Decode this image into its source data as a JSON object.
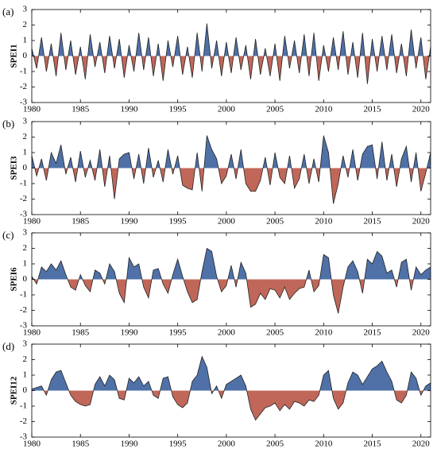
{
  "chart_data": [
    {
      "type": "area",
      "label": "(a)",
      "ylabel": "SPEI1",
      "color_above": "#4f71a8",
      "color_below": "#c0675a",
      "line_color": "#222222",
      "xlim": [
        1980,
        2021
      ],
      "xticks": [
        1980,
        1985,
        1990,
        1995,
        2000,
        2005,
        2010,
        2015,
        2020
      ],
      "ylim": [
        -3,
        3
      ],
      "yticks": [
        -3,
        -2,
        -1,
        0,
        1,
        2,
        3
      ],
      "x": [
        1980,
        1980.5,
        1981,
        1981.5,
        1982,
        1982.5,
        1983,
        1983.5,
        1984,
        1984.5,
        1985,
        1985.5,
        1986,
        1986.5,
        1987,
        1987.5,
        1988,
        1988.5,
        1989,
        1989.5,
        1990,
        1990.5,
        1991,
        1991.5,
        1992,
        1992.5,
        1993,
        1993.5,
        1994,
        1994.5,
        1995,
        1995.5,
        1996,
        1996.5,
        1997,
        1997.5,
        1998,
        1998.5,
        1999,
        1999.5,
        2000,
        2000.5,
        2001,
        2001.5,
        2002,
        2002.5,
        2003,
        2003.5,
        2004,
        2004.5,
        2005,
        2005.5,
        2006,
        2006.5,
        2007,
        2007.5,
        2008,
        2008.5,
        2009,
        2009.5,
        2010,
        2010.5,
        2011,
        2011.5,
        2012,
        2012.5,
        2013,
        2013.5,
        2014,
        2014.5,
        2015,
        2015.5,
        2016,
        2016.5,
        2017,
        2017.5,
        2018,
        2018.5,
        2019,
        2019.5,
        2020,
        2020.5,
        2021
      ],
      "values": [
        0.5,
        -0.8,
        1.2,
        -1.0,
        0.8,
        -1.3,
        1.5,
        -0.9,
        1.0,
        -1.2,
        0.6,
        -1.5,
        1.4,
        -0.7,
        0.9,
        -1.1,
        1.3,
        -0.8,
        1.1,
        -1.4,
        0.7,
        -1.0,
        1.5,
        -0.9,
        1.2,
        -1.3,
        0.8,
        -1.6,
        1.0,
        -0.7,
        1.3,
        -1.2,
        0.6,
        -1.4,
        1.5,
        -1.0,
        2.1,
        -0.8,
        1.0,
        -1.3,
        0.9,
        -1.1,
        1.2,
        -0.9,
        0.7,
        -1.5,
        1.1,
        -1.2,
        0.5,
        -1.3,
        0.8,
        -1.6,
        1.3,
        -0.8,
        1.0,
        -1.1,
        1.4,
        -1.3,
        1.5,
        -1.6,
        0.7,
        -1.0,
        1.2,
        -0.9,
        1.6,
        -1.2,
        0.9,
        -1.4,
        1.5,
        -1.8,
        1.1,
        -1.0,
        1.3,
        -0.9,
        1.4,
        -1.1,
        0.8,
        -1.3,
        1.7,
        -0.8,
        1.2,
        -1.5,
        0.6
      ]
    },
    {
      "type": "area",
      "label": "(b)",
      "ylabel": "SPEI3",
      "color_above": "#4f71a8",
      "color_below": "#c0675a",
      "line_color": "#222222",
      "xlim": [
        1980,
        2021
      ],
      "xticks": [
        1980,
        1985,
        1990,
        1995,
        2000,
        2005,
        2010,
        2015,
        2020
      ],
      "ylim": [
        -3,
        3
      ],
      "yticks": [
        -3,
        -2,
        -1,
        0,
        1,
        2,
        3
      ],
      "x": [
        1980,
        1980.5,
        1981,
        1981.5,
        1982,
        1982.5,
        1983,
        1983.5,
        1984,
        1984.5,
        1985,
        1985.5,
        1986,
        1986.5,
        1987,
        1987.5,
        1988,
        1988.5,
        1989,
        1989.5,
        1990,
        1990.5,
        1991,
        1991.5,
        1992,
        1992.5,
        1993,
        1993.5,
        1994,
        1994.5,
        1995,
        1995.5,
        1996,
        1996.5,
        1997,
        1997.5,
        1998,
        1998.5,
        1999,
        1999.5,
        2000,
        2000.5,
        2001,
        2001.5,
        2002,
        2002.5,
        2003,
        2003.5,
        2004,
        2004.5,
        2005,
        2005.5,
        2006,
        2006.5,
        2007,
        2007.5,
        2008,
        2008.5,
        2009,
        2009.5,
        2010,
        2010.5,
        2011,
        2011.5,
        2012,
        2012.5,
        2013,
        2013.5,
        2014,
        2014.5,
        2015,
        2015.5,
        2016,
        2016.5,
        2017,
        2017.5,
        2018,
        2018.5,
        2019,
        2019.5,
        2020,
        2020.5,
        2021
      ],
      "values": [
        0.8,
        -0.5,
        0.6,
        -0.8,
        1.0,
        0.3,
        1.5,
        -0.4,
        0.7,
        -0.9,
        1.1,
        -0.6,
        0.5,
        -0.8,
        1.2,
        -1.2,
        0.8,
        -2.0,
        0.6,
        0.9,
        1.0,
        -0.7,
        0.9,
        -1.0,
        1.3,
        -0.6,
        0.5,
        -0.9,
        1.2,
        -0.4,
        0.8,
        -1.1,
        -1.3,
        -1.4,
        1.0,
        -1.5,
        2.1,
        1.2,
        0.6,
        -1.0,
        -0.5,
        0.9,
        -0.7,
        1.2,
        -1.0,
        -1.5,
        -1.5,
        -0.8,
        0.7,
        -1.1,
        1.0,
        -0.6,
        -1.0,
        0.8,
        -1.3,
        -0.7,
        0.9,
        -1.0,
        0.6,
        -0.9,
        2.1,
        1.0,
        -2.3,
        -1.0,
        0.8,
        -0.6,
        1.2,
        -0.8,
        0.9,
        1.4,
        1.5,
        -0.7,
        1.7,
        -0.8,
        0.9,
        -1.2,
        0.6,
        1.4,
        -0.9,
        1.0,
        -1.5,
        -0.3,
        1.0
      ]
    },
    {
      "type": "area",
      "label": "(c)",
      "ylabel": "SPEI6",
      "color_above": "#4f71a8",
      "color_below": "#c0675a",
      "line_color": "#222222",
      "xlim": [
        1980,
        2021
      ],
      "xticks": [
        1980,
        1985,
        1990,
        1995,
        2000,
        2005,
        2010,
        2015,
        2020
      ],
      "ylim": [
        -3,
        3
      ],
      "yticks": [
        -3,
        -2,
        -1,
        0,
        1,
        2,
        3
      ],
      "x": [
        1980,
        1980.5,
        1981,
        1981.5,
        1982,
        1982.5,
        1983,
        1983.5,
        1984,
        1984.5,
        1985,
        1985.5,
        1986,
        1986.5,
        1987,
        1987.5,
        1988,
        1988.5,
        1989,
        1989.5,
        1990,
        1990.5,
        1991,
        1991.5,
        1992,
        1992.5,
        1993,
        1993.5,
        1994,
        1994.5,
        1995,
        1995.5,
        1996,
        1996.5,
        1997,
        1997.5,
        1998,
        1998.5,
        1999,
        1999.5,
        2000,
        2000.5,
        2001,
        2001.5,
        2002,
        2002.5,
        2003,
        2003.5,
        2004,
        2004.5,
        2005,
        2005.5,
        2006,
        2006.5,
        2007,
        2007.5,
        2008,
        2008.5,
        2009,
        2009.5,
        2010,
        2010.5,
        2011,
        2011.5,
        2012,
        2012.5,
        2013,
        2013.5,
        2014,
        2014.5,
        2015,
        2015.5,
        2016,
        2016.5,
        2017,
        2017.5,
        2018,
        2018.5,
        2019,
        2019.5,
        2020,
        2020.5,
        2021
      ],
      "values": [
        0.2,
        -0.3,
        0.8,
        0.5,
        1.0,
        0.6,
        1.2,
        0.3,
        -0.5,
        -0.7,
        0.3,
        -0.4,
        -0.8,
        0.6,
        0.4,
        -0.3,
        1.0,
        0.5,
        -0.9,
        -1.5,
        1.4,
        0.8,
        1.0,
        -0.5,
        -1.2,
        0.6,
        0.7,
        -0.3,
        -0.9,
        0.3,
        1.3,
        0.2,
        -0.8,
        -1.5,
        -1.3,
        0.5,
        2.0,
        1.8,
        0.2,
        -0.8,
        -0.4,
        0.9,
        -0.5,
        1.1,
        0.4,
        -1.8,
        -1.6,
        -0.9,
        -1.3,
        -0.6,
        -0.7,
        -1.2,
        -0.5,
        -1.3,
        -0.9,
        -0.6,
        -0.5,
        0.6,
        -0.8,
        -0.4,
        1.6,
        1.4,
        -1.0,
        -2.2,
        -0.5,
        0.8,
        1.2,
        0.5,
        -0.9,
        1.3,
        1.0,
        1.8,
        1.5,
        0.4,
        0.6,
        -0.5,
        1.1,
        1.3,
        -0.7,
        0.8,
        0.3,
        0.6,
        0.8
      ]
    },
    {
      "type": "area",
      "label": "(d)",
      "ylabel": "SPEI12",
      "color_above": "#4f71a8",
      "color_below": "#c0675a",
      "line_color": "#222222",
      "xlim": [
        1980,
        2021
      ],
      "xticks": [
        1980,
        1985,
        1990,
        1995,
        2000,
        2005,
        2010,
        2015,
        2020
      ],
      "ylim": [
        -3,
        3
      ],
      "yticks": [
        -3,
        -2,
        -1,
        0,
        1,
        2,
        3
      ],
      "x": [
        1980,
        1980.5,
        1981,
        1981.5,
        1982,
        1982.5,
        1983,
        1983.5,
        1984,
        1984.5,
        1985,
        1985.5,
        1986,
        1986.5,
        1987,
        1987.5,
        1988,
        1988.5,
        1989,
        1989.5,
        1990,
        1990.5,
        1991,
        1991.5,
        1992,
        1992.5,
        1993,
        1993.5,
        1994,
        1994.5,
        1995,
        1995.5,
        1996,
        1996.5,
        1997,
        1997.5,
        1998,
        1998.5,
        1999,
        1999.5,
        2000,
        2000.5,
        2001,
        2001.5,
        2002,
        2002.5,
        2003,
        2003.5,
        2004,
        2004.5,
        2005,
        2005.5,
        2006,
        2006.5,
        2007,
        2007.5,
        2008,
        2008.5,
        2009,
        2009.5,
        2010,
        2010.5,
        2011,
        2011.5,
        2012,
        2012.5,
        2013,
        2013.5,
        2014,
        2014.5,
        2015,
        2015.5,
        2016,
        2016.5,
        2017,
        2017.5,
        2018,
        2018.5,
        2019,
        2019.5,
        2020,
        2020.5,
        2021
      ],
      "values": [
        0.1,
        0.2,
        0.3,
        -0.3,
        0.7,
        1.2,
        1.3,
        0.5,
        -0.3,
        -0.7,
        -0.9,
        -1.0,
        -0.9,
        0.4,
        0.9,
        0.3,
        1.0,
        0.7,
        -0.5,
        -0.6,
        0.8,
        0.5,
        0.9,
        0.3,
        0.6,
        -0.3,
        -0.5,
        0.8,
        0.9,
        -0.4,
        -0.9,
        -1.1,
        -0.8,
        0.6,
        1.0,
        2.2,
        1.5,
        -0.2,
        0.3,
        -0.5,
        0.4,
        0.6,
        0.8,
        1.0,
        0.3,
        -1.2,
        -1.9,
        -1.5,
        -1.1,
        -1.0,
        -0.8,
        -1.3,
        -0.9,
        -1.2,
        -0.7,
        -0.8,
        -1.0,
        -0.6,
        -0.7,
        -0.3,
        1.0,
        1.3,
        -0.5,
        -1.2,
        -0.8,
        0.5,
        1.2,
        1.0,
        0.4,
        0.9,
        1.4,
        1.6,
        1.9,
        1.2,
        0.6,
        -0.6,
        -0.8,
        -0.3,
        1.2,
        0.8,
        -0.3,
        0.3,
        0.5
      ]
    }
  ]
}
